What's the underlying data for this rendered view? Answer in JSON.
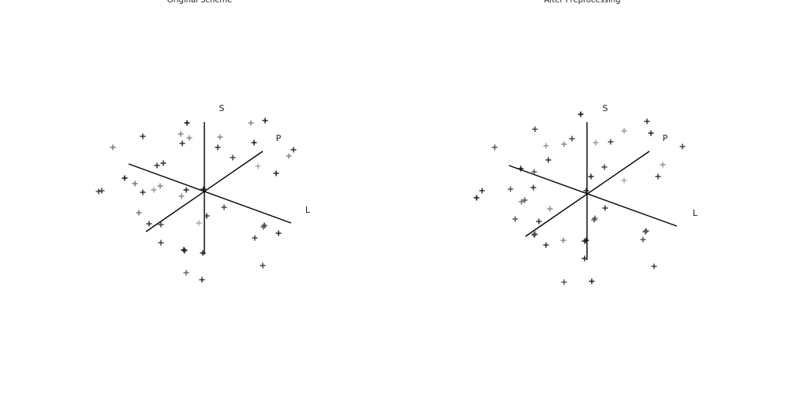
{
  "chart_data": [
    {
      "type": "scatter",
      "title": "Original Scheme",
      "axis_labels": [
        "S",
        "P",
        "L"
      ],
      "xlim": [
        -150,
        150
      ],
      "ylim": [
        -130,
        130
      ],
      "x": [
        -22,
        77,
        59,
        -78,
        -30,
        -19,
        -28,
        20,
        63,
        -116,
        17,
        113,
        107,
        36,
        -52,
        -60,
        68,
        91,
        -101,
        -88,
        -56,
        -64,
        -78,
        -23,
        -1,
        -134,
        -130,
        -29,
        25,
        3,
        -83,
        -70,
        -55,
        -7,
        76,
        75,
        94,
        64,
        -55,
        -26,
        -25,
        -2,
        74,
        -23,
        -3
      ],
      "values": [
        87,
        90,
        87,
        70,
        73,
        68,
        61,
        69,
        62,
        56,
        56,
        53,
        45,
        43,
        36,
        33,
        32,
        23,
        17,
        10,
        7,
        2,
        -1,
        2,
        3,
        0,
        1,
        -6,
        -20,
        -31,
        -27,
        -41,
        -42,
        -40,
        -43,
        -45,
        -53,
        -59,
        -65,
        -74,
        -75,
        -78,
        -94,
        -103,
        -112
      ],
      "colors": [
        "#111",
        "#222",
        "#888",
        "#333",
        "#888",
        "#888",
        "#333",
        "#888",
        "#222",
        "#777",
        "#333",
        "#333",
        "#888",
        "#444",
        "#333",
        "#333",
        "#aaa",
        "#222",
        "#111",
        "#777",
        "#888",
        "#999",
        "#333",
        "#222",
        "#111",
        "#444",
        "#444",
        "#888",
        "#444",
        "#333",
        "#777",
        "#333",
        "#444",
        "#aaa",
        "#333",
        "#555",
        "#222",
        "#444",
        "#444",
        "#111",
        "#222",
        "#222",
        "#444",
        "#666",
        "#333"
      ]
    },
    {
      "type": "scatter",
      "title": "After Preprocessing",
      "axis_labels": [
        "S",
        "P",
        "L"
      ],
      "xlim": [
        -150,
        150
      ],
      "ylim": [
        -130,
        130
      ],
      "x": [
        -8,
        76,
        -66,
        47,
        81,
        -19,
        11,
        30,
        -52,
        -29,
        -117,
        121,
        -49,
        96,
        22,
        -84,
        -67,
        90,
        5,
        47,
        -68,
        -97,
        -133,
        -1,
        -140,
        -79,
        -83,
        23,
        -47,
        10,
        9,
        -91,
        -61,
        75,
        74,
        -66,
        -67,
        71,
        -30,
        -52,
        -1,
        -3,
        -3,
        85,
        -29,
        6
      ],
      "values": [
        100,
        91,
        81,
        79,
        76,
        69,
        64,
        65,
        60,
        62,
        58,
        59,
        42,
        36,
        33,
        31,
        27,
        21,
        21,
        16,
        7,
        5,
        3,
        3,
        -6,
        -9,
        -11,
        -19,
        -20,
        -32,
        -34,
        -33,
        -36,
        -48,
        -49,
        -52,
        -53,
        -59,
        -60,
        -66,
        -60,
        -61,
        -83,
        -93,
        -113,
        -112
      ],
      "colors": [
        "#111",
        "#333",
        "#444",
        "#999",
        "#222",
        "#444",
        "#999",
        "#444",
        "#999",
        "#888",
        "#555",
        "#444",
        "#333",
        "#999",
        "#444",
        "#111",
        "#555",
        "#333",
        "#222",
        "#aaa",
        "#333",
        "#555",
        "#333",
        "#222",
        "#111",
        "#555",
        "#777",
        "#333",
        "#888",
        "#555",
        "#555",
        "#555",
        "#333",
        "#444",
        "#555",
        "#555",
        "#444",
        "#555",
        "#888",
        "#333",
        "#111",
        "#222",
        "#222",
        "#444",
        "#555",
        "#222"
      ]
    }
  ]
}
